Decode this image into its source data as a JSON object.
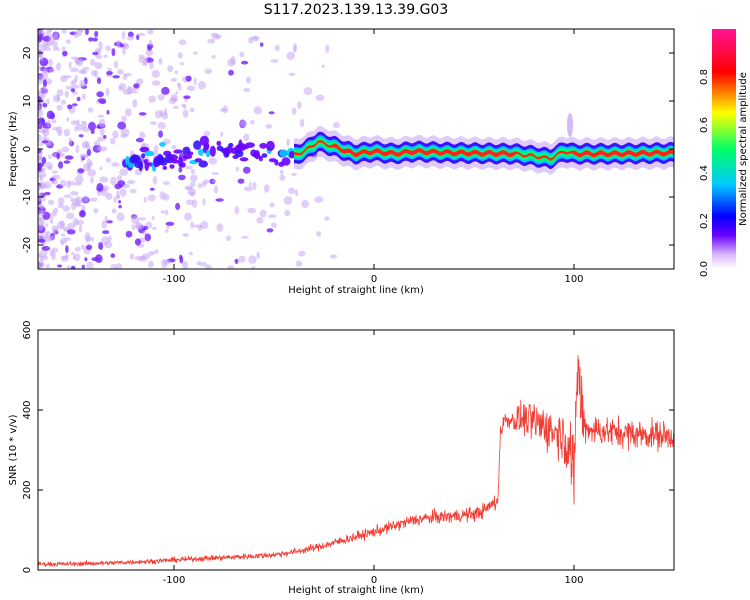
{
  "figure": {
    "title": "S117.2023.139.13.39.G03"
  },
  "chart_data": [
    {
      "type": "heatmap",
      "xlabel": "Height of straight line (km)",
      "ylabel": "Frequency (Hz)",
      "xlim": [
        -168,
        150
      ],
      "ylim": [
        -25,
        25
      ],
      "xticks": [
        -100,
        0,
        100
      ],
      "yticks": [
        -20,
        -10,
        0,
        10,
        20
      ],
      "colorbar": {
        "label": "Normalized spectral amplitude",
        "range": [
          0,
          1
        ],
        "ticks": [
          0.0,
          0.2,
          0.4,
          0.6,
          0.8
        ],
        "colormap": [
          "#ffffff",
          "#d9b8ff",
          "#6a00ff",
          "#0000ff",
          "#00c8ff",
          "#00ff66",
          "#ffff00",
          "#ff0000",
          "#ff1493"
        ]
      },
      "ridge": [
        {
          "x": -120,
          "f": -2.5
        },
        {
          "x": -100,
          "f": -1.5
        },
        {
          "x": -80,
          "f": -0.5
        },
        {
          "x": -60,
          "f": -1.0
        },
        {
          "x": -45,
          "f": -2.0
        },
        {
          "x": -35,
          "f": -0.5
        },
        {
          "x": -28,
          "f": 1.5
        },
        {
          "x": -20,
          "f": 0.5
        },
        {
          "x": -10,
          "f": -1.0
        },
        {
          "x": 0,
          "f": -0.5
        },
        {
          "x": 10,
          "f": -1.0
        },
        {
          "x": 20,
          "f": -0.5
        },
        {
          "x": 40,
          "f": -0.8
        },
        {
          "x": 70,
          "f": -1.0
        },
        {
          "x": 80,
          "f": -1.5
        },
        {
          "x": 88,
          "f": -2.0
        },
        {
          "x": 95,
          "f": -0.5
        },
        {
          "x": 100,
          "f": -1.0
        },
        {
          "x": 120,
          "f": -1.0
        },
        {
          "x": 150,
          "f": -0.8
        }
      ]
    },
    {
      "type": "line",
      "xlabel": "Height of straight line (km)",
      "ylabel": "SNR (10 * v/v)",
      "xlim": [
        -168,
        150
      ],
      "ylim": [
        0,
        600
      ],
      "xticks": [
        -100,
        0,
        100
      ],
      "yticks": [
        0,
        200,
        400,
        600
      ],
      "color": "#f03c32",
      "series": [
        {
          "x": [
            -168,
            -150,
            -130,
            -110,
            -90,
            -70,
            -50,
            -40,
            -30,
            -20,
            -10,
            0,
            10,
            20,
            30,
            40,
            50,
            55,
            60,
            62,
            63,
            65,
            70,
            75,
            80,
            85,
            90,
            95,
            98,
            100,
            101,
            102,
            103,
            105,
            110,
            120,
            130,
            140,
            150
          ],
          "y": [
            15,
            15,
            18,
            22,
            28,
            32,
            38,
            45,
            55,
            68,
            82,
            95,
            110,
            125,
            132,
            135,
            140,
            148,
            168,
            170,
            340,
            375,
            375,
            378,
            370,
            360,
            345,
            340,
            320,
            190,
            420,
            520,
            440,
            360,
            350,
            345,
            340,
            338,
            335
          ]
        }
      ]
    }
  ]
}
